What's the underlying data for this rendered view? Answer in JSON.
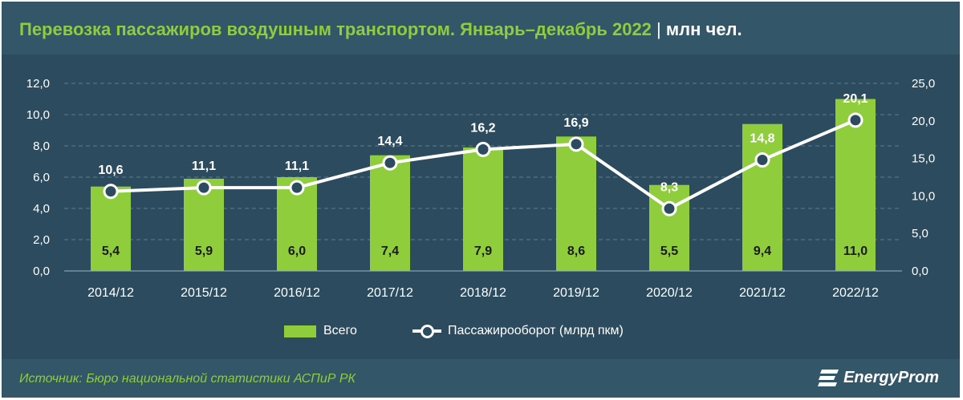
{
  "header": {
    "title": "Перевозка пассажиров воздушным транспортом. Январь–декабрь 2022",
    "separator": "|",
    "unit": "млн чел."
  },
  "chart_data": {
    "type": "bar+line",
    "categories": [
      "2014/12",
      "2015/12",
      "2016/12",
      "2017/12",
      "2018/12",
      "2019/12",
      "2020/12",
      "2021/12",
      "2022/12"
    ],
    "series": [
      {
        "name": "Всего",
        "type": "bar",
        "axis": "left",
        "values": [
          5.4,
          5.9,
          6.0,
          7.4,
          7.9,
          8.6,
          5.5,
          9.4,
          11.0
        ],
        "labels": [
          "5,4",
          "5,9",
          "6,0",
          "7,4",
          "7,9",
          "8,6",
          "5,5",
          "9,4",
          "11,0"
        ]
      },
      {
        "name": "Пассажирооборот (млрд пкм)",
        "type": "line",
        "axis": "right",
        "values": [
          10.6,
          11.1,
          11.1,
          14.4,
          16.2,
          16.9,
          8.3,
          14.8,
          20.1
        ],
        "labels": [
          "10,6",
          "11,1",
          "11,1",
          "14,4",
          "16,2",
          "16,9",
          "8,3",
          "14,8",
          "20,1"
        ]
      }
    ],
    "left_axis": {
      "min": 0,
      "max": 12,
      "step": 2,
      "tick_labels": [
        "0,0",
        "2,0",
        "4,0",
        "6,0",
        "8,0",
        "10,0",
        "12,0"
      ]
    },
    "right_axis": {
      "min": 0,
      "max": 25,
      "step": 5,
      "tick_labels": [
        "0,0",
        "5,0",
        "10,0",
        "15,0",
        "20,0",
        "25,0"
      ]
    },
    "grid": "dashed horizontal",
    "legend_position": "bottom",
    "colors": {
      "bar": "#8fcd3c",
      "line": "#ffffff",
      "background": "#2c4b5e",
      "title": "#8fcd3c"
    }
  },
  "legend": {
    "bar_label": "Всего",
    "line_label": "Пассажирооборот (млрд пкм)"
  },
  "footer": {
    "source": "Источник: Бюро национальной статистики АСПиР РК",
    "brand": "EnergyProm"
  }
}
